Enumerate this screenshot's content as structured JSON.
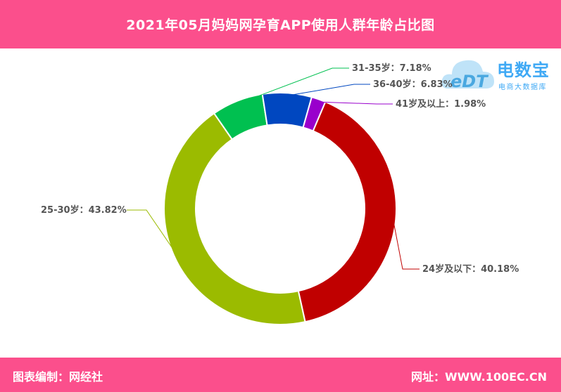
{
  "header": {
    "title": "2021年05月妈妈网孕育APP使用人群年龄占比图"
  },
  "footer": {
    "left": "图表编制：网经社",
    "right": "网址：WWW.100EC.CN"
  },
  "logo": {
    "name": "电数宝",
    "sub": "电商大数据库",
    "mark": "eDT"
  },
  "chart_data": {
    "type": "pie",
    "donut": true,
    "categories": [
      "24岁及以下",
      "25-30岁",
      "31-35岁",
      "36-40岁",
      "41岁及以上"
    ],
    "values": [
      40.18,
      43.82,
      7.18,
      6.83,
      1.98
    ],
    "labels": [
      "24岁及以下：40.18%",
      "25-30岁：43.82%",
      "31-35岁：7.18%",
      "36-40岁：6.83%",
      "41岁及以上：1.98%"
    ],
    "colors": [
      "#c00000",
      "#9bbb00",
      "#00c050",
      "#0047c0",
      "#9900cc"
    ]
  }
}
